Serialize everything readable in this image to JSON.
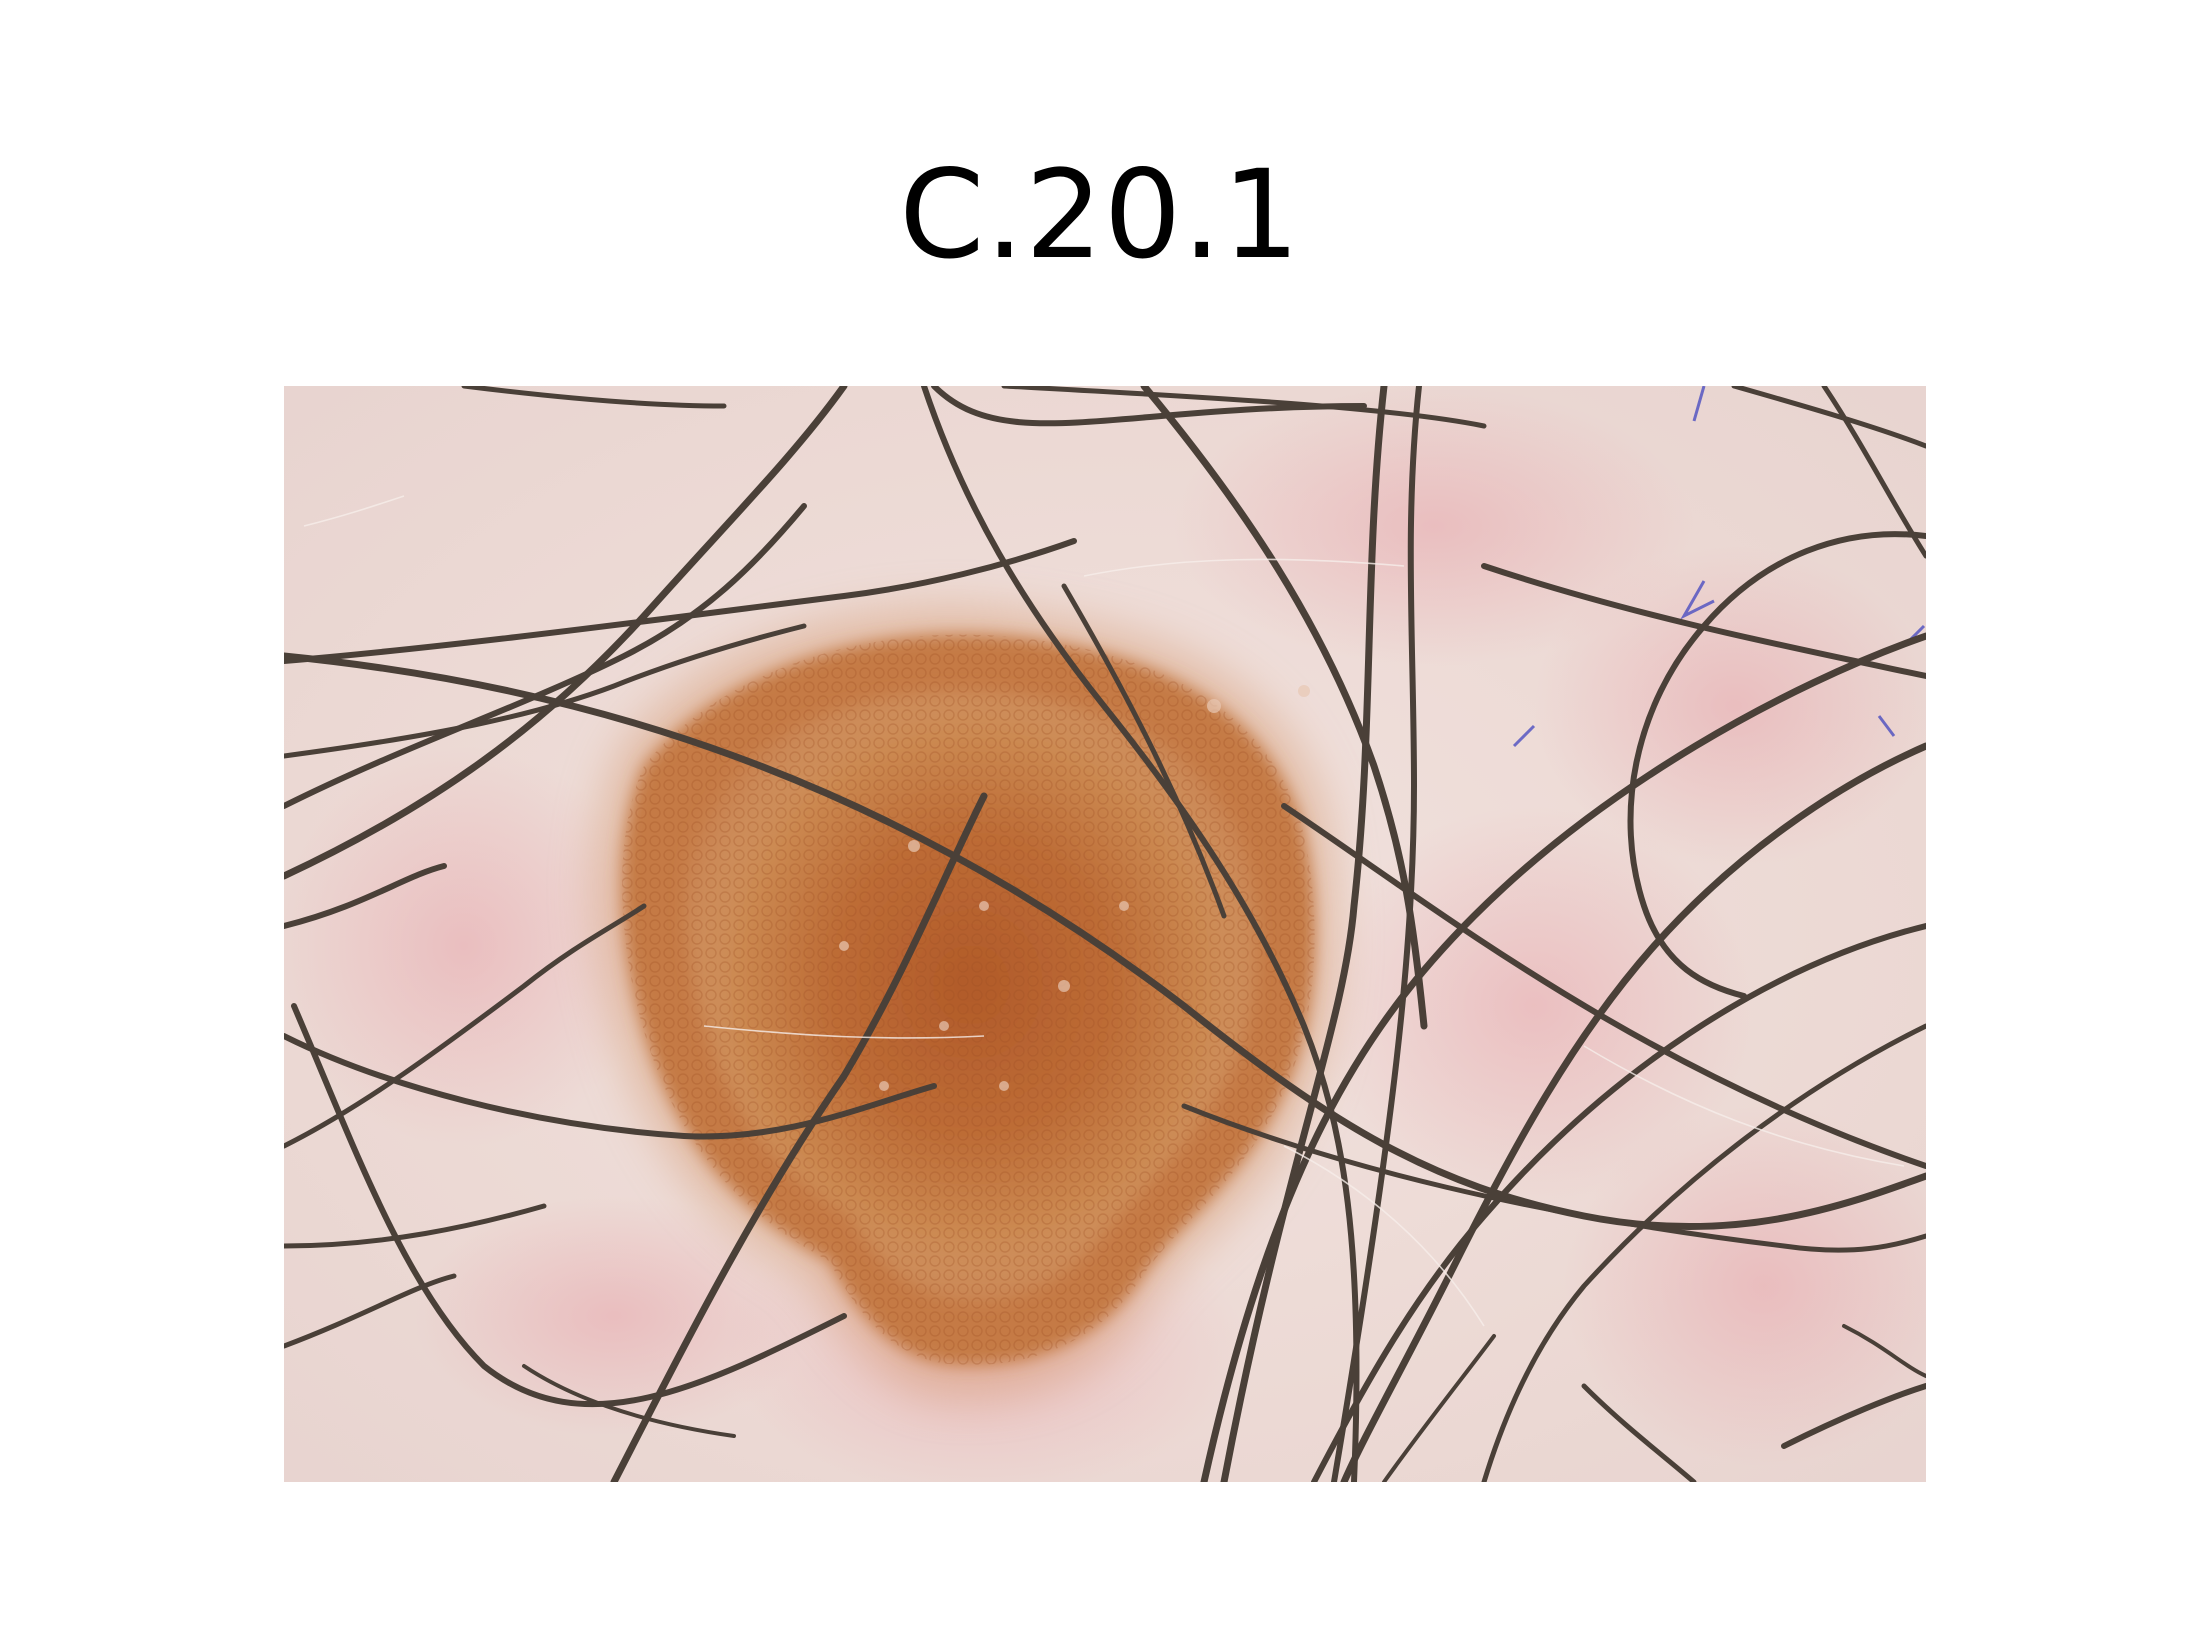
{
  "slide": {
    "title": "C.20.1"
  },
  "photo": {
    "subject": "dermoscopy-lesion-with-hairs",
    "colors": {
      "skin": "#eddcd7",
      "skin_pink": "#eab4b8",
      "lesion_core": "#b9622e",
      "lesion_mid": "#c98a55",
      "lesion_edge": "#d9a77e",
      "hair": "#4a4038",
      "ink_mark": "#4b4dc0"
    }
  }
}
